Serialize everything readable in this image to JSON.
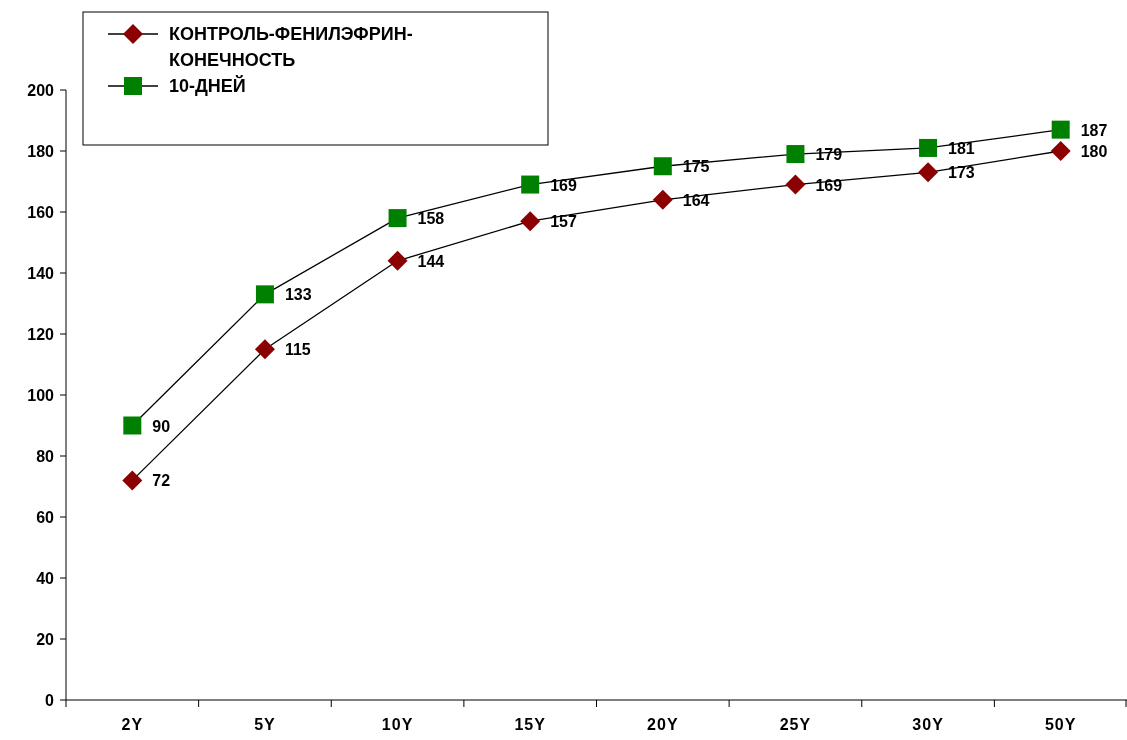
{
  "chart_data": {
    "type": "line",
    "categories": [
      "2Y",
      "5Y",
      "10Y",
      "15Y",
      "20Y",
      "25Y",
      "30Y",
      "50Y"
    ],
    "series": [
      {
        "name": "КОНТРОЛЬ-ФЕНИЛЭФРИН-КОНЕЧНОСТЬ",
        "color": "#8b0000",
        "marker": "diamond",
        "values": [
          72,
          115,
          144,
          157,
          164,
          169,
          173,
          180
        ]
      },
      {
        "name": "10-ДНЕЙ",
        "color": "#008000",
        "marker": "square",
        "values": [
          90,
          133,
          158,
          169,
          175,
          179,
          181,
          187
        ]
      }
    ],
    "ylim": [
      0,
      200
    ],
    "yticks": [
      0,
      20,
      40,
      60,
      80,
      100,
      120,
      140,
      160,
      180,
      200
    ],
    "grid": false,
    "legend": "top left",
    "data_labels": true,
    "line_style": "solid"
  }
}
